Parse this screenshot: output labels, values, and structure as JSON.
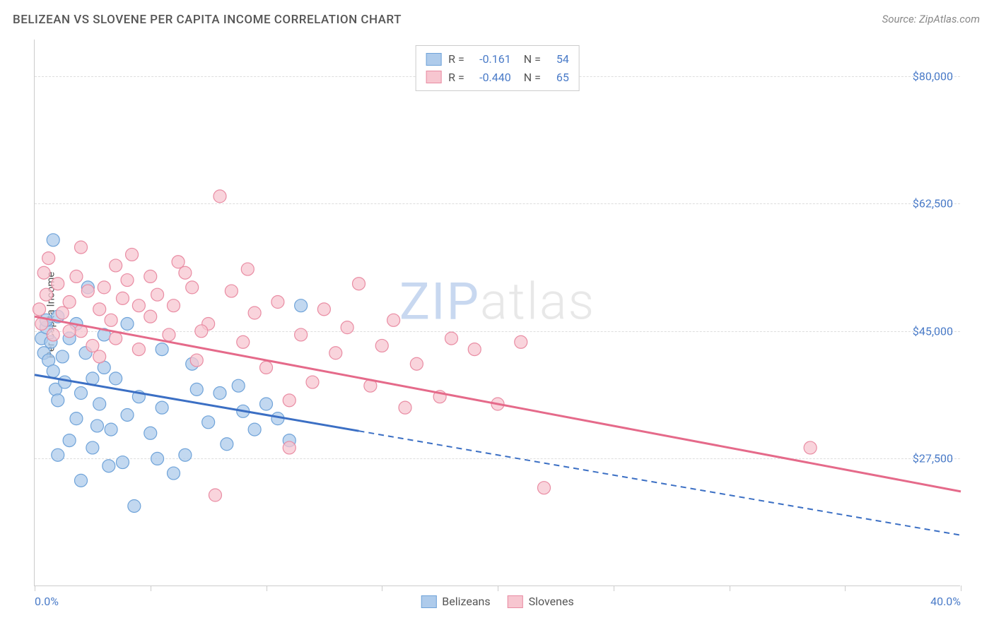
{
  "title": "BELIZEAN VS SLOVENE PER CAPITA INCOME CORRELATION CHART",
  "source": "Source: ZipAtlas.com",
  "ylabel": "Per Capita Income",
  "watermark_zip": "ZIP",
  "watermark_atlas": "atlas",
  "chart": {
    "type": "scatter-regression",
    "xlim": [
      0,
      40
    ],
    "ylim": [
      10000,
      85000
    ],
    "x_tick_positions": [
      0,
      5,
      10,
      15,
      20,
      25,
      30,
      35,
      40
    ],
    "x_tick_labels": {
      "0": "0.0%",
      "40": "40.0%"
    },
    "y_ticks": [
      27500,
      45000,
      62500,
      80000
    ],
    "y_tick_labels": [
      "$27,500",
      "$45,000",
      "$62,500",
      "$80,000"
    ],
    "grid_color": "#dddddd",
    "background_color": "#ffffff",
    "axis_color": "#cccccc",
    "label_color": "#555555",
    "tick_label_color": "#4a7bc8"
  },
  "series": [
    {
      "name": "Belizeans",
      "fill": "#aecbeb",
      "stroke": "#6fa3d9",
      "line_color": "#3b6fc4",
      "r_value": "-0.161",
      "n_value": "54",
      "regression": {
        "x1": 0,
        "y1": 39000,
        "x2": 40,
        "y2": 17000,
        "solid_until_x": 14
      },
      "points": [
        [
          0.3,
          44000
        ],
        [
          0.4,
          42000
        ],
        [
          0.5,
          45500
        ],
        [
          0.6,
          41000
        ],
        [
          0.7,
          43500
        ],
        [
          0.8,
          39500
        ],
        [
          0.5,
          46500
        ],
        [
          0.9,
          37000
        ],
        [
          1.0,
          35500
        ],
        [
          1.2,
          41500
        ],
        [
          1.3,
          38000
        ],
        [
          1.5,
          44000
        ],
        [
          1.0,
          47000
        ],
        [
          1.8,
          33000
        ],
        [
          2.0,
          36500
        ],
        [
          0.8,
          57500
        ],
        [
          2.2,
          42000
        ],
        [
          2.5,
          29000
        ],
        [
          2.7,
          32000
        ],
        [
          2.8,
          35000
        ],
        [
          3.0,
          40000
        ],
        [
          3.2,
          26500
        ],
        [
          1.5,
          30000
        ],
        [
          3.5,
          38500
        ],
        [
          3.8,
          27000
        ],
        [
          4.0,
          33500
        ],
        [
          4.3,
          21000
        ],
        [
          4.5,
          36000
        ],
        [
          1.0,
          28000
        ],
        [
          5.0,
          31000
        ],
        [
          5.3,
          27500
        ],
        [
          5.5,
          34500
        ],
        [
          6.0,
          25500
        ],
        [
          2.0,
          24500
        ],
        [
          6.5,
          28000
        ],
        [
          7.0,
          37000
        ],
        [
          3.0,
          44500
        ],
        [
          7.5,
          32500
        ],
        [
          8.0,
          36500
        ],
        [
          8.3,
          29500
        ],
        [
          8.8,
          37500
        ],
        [
          9.0,
          34000
        ],
        [
          9.5,
          31500
        ],
        [
          10.0,
          35000
        ],
        [
          4.0,
          46000
        ],
        [
          10.5,
          33000
        ],
        [
          11.0,
          30000
        ],
        [
          11.5,
          48500
        ],
        [
          2.3,
          51000
        ],
        [
          5.5,
          42500
        ],
        [
          6.8,
          40500
        ],
        [
          1.8,
          46000
        ],
        [
          2.5,
          38500
        ],
        [
          3.3,
          31500
        ]
      ]
    },
    {
      "name": "Slovenes",
      "fill": "#f7c6d0",
      "stroke": "#e98ca3",
      "line_color": "#e56a8a",
      "r_value": "-0.440",
      "n_value": "65",
      "regression": {
        "x1": 0,
        "y1": 47000,
        "x2": 40,
        "y2": 23000,
        "solid_until_x": 40
      },
      "points": [
        [
          0.2,
          48000
        ],
        [
          0.3,
          46000
        ],
        [
          0.5,
          50000
        ],
        [
          0.8,
          44500
        ],
        [
          1.0,
          51500
        ],
        [
          1.2,
          47500
        ],
        [
          0.4,
          53000
        ],
        [
          1.5,
          49000
        ],
        [
          1.8,
          52500
        ],
        [
          2.0,
          45000
        ],
        [
          2.3,
          50500
        ],
        [
          2.5,
          43000
        ],
        [
          0.6,
          55000
        ],
        [
          2.8,
          48000
        ],
        [
          3.0,
          51000
        ],
        [
          3.3,
          46500
        ],
        [
          3.5,
          44000
        ],
        [
          3.8,
          49500
        ],
        [
          4.0,
          52000
        ],
        [
          4.5,
          42500
        ],
        [
          5.0,
          47000
        ],
        [
          5.3,
          50000
        ],
        [
          5.8,
          44500
        ],
        [
          6.0,
          48500
        ],
        [
          6.5,
          53000
        ],
        [
          7.0,
          41000
        ],
        [
          7.5,
          46000
        ],
        [
          8.0,
          63500
        ],
        [
          8.5,
          50500
        ],
        [
          9.0,
          43500
        ],
        [
          9.5,
          47500
        ],
        [
          4.2,
          55500
        ],
        [
          10.0,
          40000
        ],
        [
          10.5,
          49000
        ],
        [
          11.0,
          35500
        ],
        [
          11.5,
          44500
        ],
        [
          12.0,
          38000
        ],
        [
          12.5,
          48000
        ],
        [
          13.0,
          42000
        ],
        [
          13.5,
          45500
        ],
        [
          14.0,
          51500
        ],
        [
          14.5,
          37500
        ],
        [
          15.0,
          43000
        ],
        [
          15.5,
          46500
        ],
        [
          16.0,
          34500
        ],
        [
          16.5,
          40500
        ],
        [
          6.2,
          54500
        ],
        [
          17.5,
          36000
        ],
        [
          18.0,
          44000
        ],
        [
          7.8,
          22500
        ],
        [
          19.0,
          42500
        ],
        [
          20.0,
          35000
        ],
        [
          21.0,
          43500
        ],
        [
          22.0,
          23500
        ],
        [
          9.2,
          53500
        ],
        [
          2.0,
          56500
        ],
        [
          11.0,
          29000
        ],
        [
          3.5,
          54000
        ],
        [
          5.0,
          52500
        ],
        [
          6.8,
          51000
        ],
        [
          33.5,
          29000
        ],
        [
          1.5,
          45000
        ],
        [
          2.8,
          41500
        ],
        [
          4.5,
          48500
        ],
        [
          7.2,
          45000
        ]
      ]
    }
  ],
  "legend_bottom": [
    {
      "label": "Belizeans",
      "fill": "#aecbeb",
      "stroke": "#6fa3d9"
    },
    {
      "label": "Slovenes",
      "fill": "#f7c6d0",
      "stroke": "#e98ca3"
    }
  ]
}
